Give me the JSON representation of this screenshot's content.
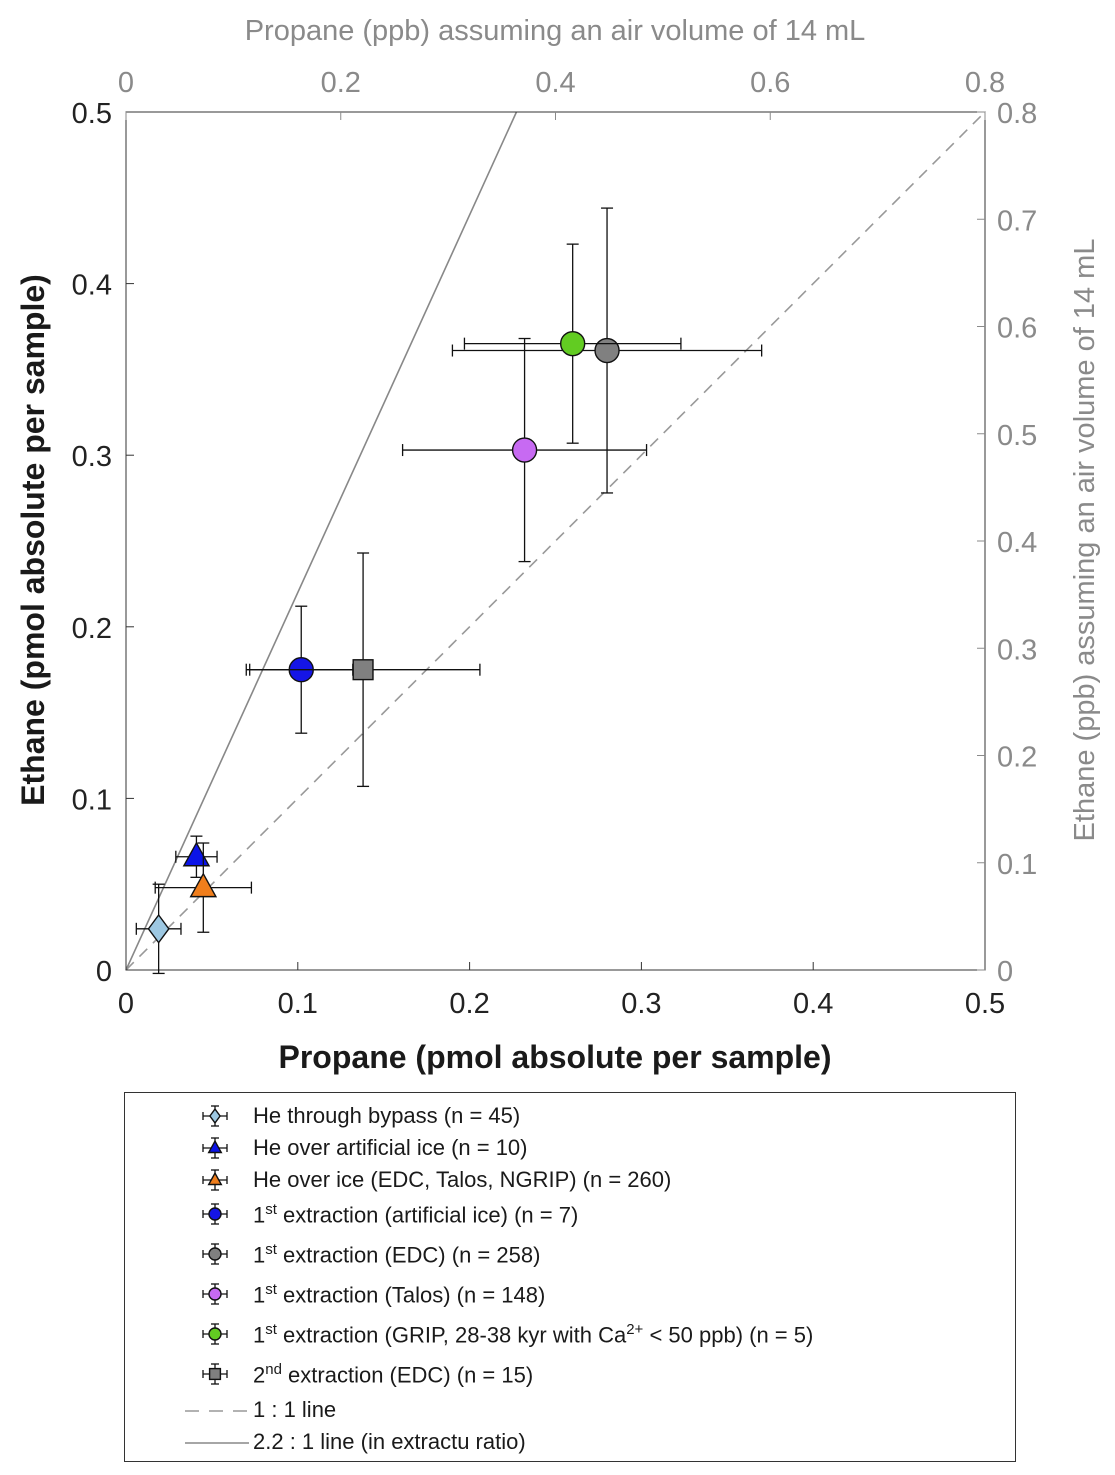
{
  "chart_data": {
    "type": "scatter",
    "xlabel": "Propane (pmol absolute per sample)",
    "ylabel": "Ethane (pmol absolute per sample)",
    "x2label": "Propane (ppb) assuming an air volume of 14 mL",
    "y2label": "Ethane (ppb) assuming an air volume of 14 mL",
    "xlim": [
      0,
      0.5
    ],
    "ylim": [
      0,
      0.5
    ],
    "x2lim": [
      0,
      0.8
    ],
    "y2lim": [
      0,
      0.8
    ],
    "x_ticks": [
      "0",
      "0.1",
      "0.2",
      "0.3",
      "0.4",
      "0.5"
    ],
    "y_ticks": [
      "0",
      "0.1",
      "0.2",
      "0.3",
      "0.4",
      "0.5"
    ],
    "x2_ticks": [
      "0",
      "0.2",
      "0.4",
      "0.6",
      "0.8"
    ],
    "y2_ticks": [
      "0",
      "0.1",
      "0.2",
      "0.3",
      "0.4",
      "0.5",
      "0.6",
      "0.7",
      "0.8"
    ],
    "grid": false,
    "series": [
      {
        "name": "He through bypass (n = 45)",
        "marker": "diamond",
        "color": "#9dc8e2",
        "x": 0.019,
        "y": 0.024,
        "xerr": 0.013,
        "yerr": 0.026
      },
      {
        "name": "He over artificial ice (n = 10)",
        "marker": "triangle",
        "color": "#0b14e8",
        "x": 0.041,
        "y": 0.066,
        "xerr": 0.012,
        "yerr": 0.012
      },
      {
        "name": "He over ice (EDC, Talos, NGRIP) (n = 260)",
        "marker": "triangle",
        "color": "#f07e1c",
        "x": 0.045,
        "y": 0.048,
        "xerr": 0.028,
        "yerr": 0.026
      },
      {
        "name": "1st extraction (artificial ice) (n = 7)",
        "marker": "circle",
        "color": "#1515e6",
        "x": 0.102,
        "y": 0.175,
        "xerr": 0.03,
        "yerr": 0.037
      },
      {
        "name": "1st extraction (EDC) (n = 258)",
        "marker": "circle",
        "color": "#808080",
        "x": 0.28,
        "y": 0.361,
        "xerr": 0.09,
        "yerr": 0.083
      },
      {
        "name": "1st extraction (Talos) (n = 148)",
        "marker": "circle",
        "color": "#c76af2",
        "x": 0.232,
        "y": 0.303,
        "xerr": 0.071,
        "yerr": 0.065
      },
      {
        "name": "1st extraction (GRIP, 28-38 kyr with Ca2+ < 50 ppb) (n = 5)",
        "marker": "circle",
        "color": "#62cc22",
        "x": 0.26,
        "y": 0.365,
        "xerr": 0.063,
        "yerr": 0.058
      },
      {
        "name": "2nd extraction (EDC) (n = 15)",
        "marker": "square",
        "color": "#808080",
        "x": 0.138,
        "y": 0.175,
        "xerr": 0.068,
        "yerr": 0.068
      }
    ],
    "lines": [
      {
        "name": "1 : 1 line",
        "slope": 1.0,
        "style": "dashed",
        "color": "#999999"
      },
      {
        "name": "2.2 : 1 line (in extractu ratio)",
        "slope": 2.2,
        "style": "solid",
        "color": "#888888"
      }
    ]
  },
  "legend": {
    "items": [
      {
        "pre": "He through bypass (n = 45)"
      },
      {
        "pre": "He over artificial ice (n = 10)"
      },
      {
        "pre": "He over ice (EDC, Talos, NGRIP) (n = 260)"
      },
      {
        "pre": "1",
        "sup": "st",
        "post": " extraction (artificial ice) (n = 7)"
      },
      {
        "pre": "1",
        "sup": "st",
        "post": " extraction (EDC) (n = 258)"
      },
      {
        "pre": "1",
        "sup": "st",
        "post": " extraction (Talos) (n = 148)"
      },
      {
        "pre": "1",
        "sup": "st",
        "post": " extraction (GRIP, 28-38 kyr with Ca",
        "sup2": "2+",
        "post2": " < 50 ppb) (n = 5)"
      },
      {
        "pre": "2",
        "sup": "nd",
        "post": " extraction (EDC) (n = 15)"
      },
      {
        "pre": "1 : 1 line"
      },
      {
        "pre": "2.2 : 1 line (in extractu ratio)"
      }
    ]
  }
}
